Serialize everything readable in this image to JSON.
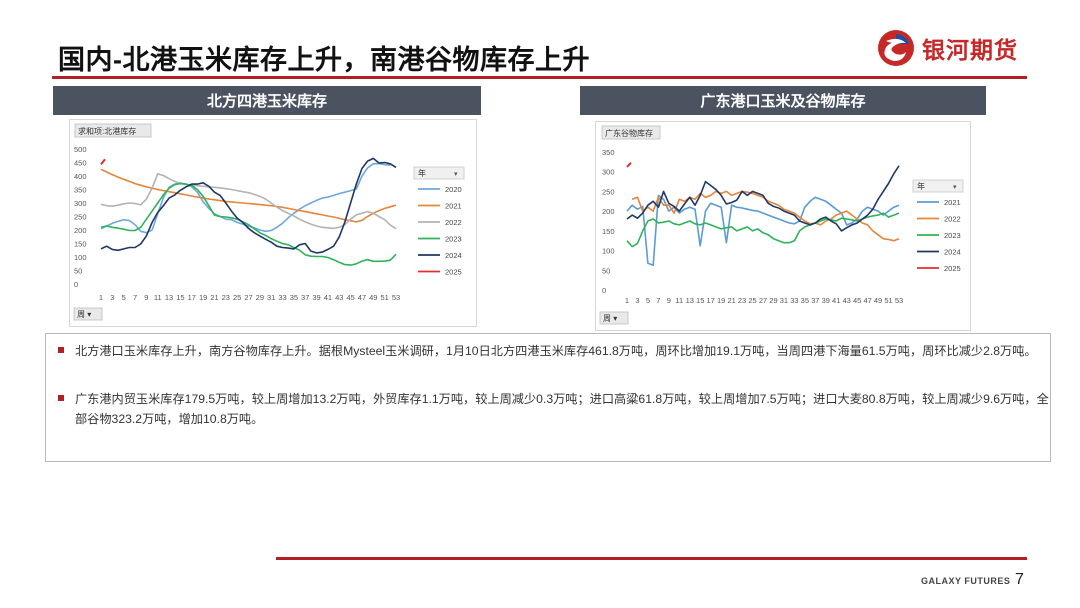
{
  "slide": {
    "title": "国内-北港玉米库存上升，南港谷物库存上升",
    "brand_name": "银河期货",
    "footer_brand": "GALAXY FUTURES",
    "page_number": "7",
    "accent_color": "#b21f24",
    "header_color": "#4b5361"
  },
  "panels": [
    {
      "header": "北方四港玉米库存"
    },
    {
      "header": "广东港口玉米及谷物库存"
    }
  ],
  "notes": [
    "北方港口玉米库存上升，南方谷物库存上升。据根Mysteel玉米调研，1月10日北方四港玉米库存461.8万吨，周环比增加19.1万吨，当周四港下海量61.5万吨，周环比减少2.8万吨。",
    "广东港内贸玉米库存179.5万吨，较上周增加13.2万吨，外贸库存1.1万吨，较上周减少0.3万吨；进口高粱61.8万吨，较上周增加7.5万吨；进口大麦80.8万吨，较上周减少9.6万吨，全部谷物323.2万吨，增加10.8万吨。"
  ],
  "chart_data": [
    {
      "type": "line",
      "field_button": "求和项:北港库存",
      "legend_title": "年",
      "axis_button": "周",
      "ylim": [
        0,
        500
      ],
      "yticks": [
        "0",
        "50",
        "100",
        "150",
        "200",
        "250",
        "300",
        "350",
        "400",
        "450",
        "500"
      ],
      "xticks": [
        "1",
        "3",
        "5",
        "7",
        "9",
        "11",
        "13",
        "15",
        "17",
        "19",
        "21",
        "23",
        "25",
        "27",
        "29",
        "31",
        "33",
        "35",
        "37",
        "39",
        "41",
        "43",
        "45",
        "47",
        "49",
        "51",
        "53"
      ],
      "legend_position": "right",
      "x": [
        1,
        2,
        3,
        4,
        5,
        6,
        7,
        8,
        9,
        10,
        11,
        12,
        13,
        14,
        15,
        16,
        17,
        18,
        19,
        20,
        21,
        22,
        23,
        24,
        25,
        26,
        27,
        28,
        29,
        30,
        31,
        32,
        33,
        34,
        35,
        36,
        37,
        38,
        39,
        40,
        41,
        42,
        43,
        44,
        45,
        46,
        47,
        48,
        49,
        50,
        51,
        52,
        53
      ],
      "series": [
        {
          "name": "2020",
          "color": "#6fa8dc",
          "values": [
            205,
            215,
            225,
            232,
            238,
            235,
            220,
            195,
            190,
            200,
            260,
            320,
            358,
            370,
            374,
            370,
            360,
            340,
            305,
            280,
            260,
            250,
            240,
            238,
            228,
            222,
            214,
            208,
            200,
            195,
            198,
            210,
            225,
            245,
            262,
            277,
            290,
            300,
            310,
            318,
            322,
            328,
            335,
            340,
            346,
            352,
            400,
            430,
            445,
            446,
            442,
            440,
            null
          ]
        },
        {
          "name": "2021",
          "color": "#e6843b",
          "values": [
            425,
            415,
            405,
            396,
            388,
            380,
            372,
            366,
            360,
            355,
            350,
            346,
            342,
            338,
            334,
            330,
            326,
            322,
            318,
            315,
            312,
            309,
            306,
            304,
            302,
            300,
            298,
            296,
            294,
            292,
            290,
            287,
            284,
            280,
            276,
            272,
            268,
            264,
            260,
            256,
            252,
            248,
            243,
            238,
            234,
            230,
            236,
            250,
            262,
            272,
            280,
            286,
            292
          ]
        },
        {
          "name": "2022",
          "color": "#b3b3b3",
          "values": [
            295,
            290,
            288,
            292,
            297,
            300,
            298,
            293,
            315,
            355,
            408,
            402,
            390,
            380,
            372,
            368,
            366,
            364,
            362,
            360,
            358,
            356,
            353,
            350,
            346,
            342,
            338,
            332,
            325,
            315,
            300,
            285,
            272,
            262,
            252,
            240,
            230,
            222,
            215,
            210,
            208,
            206,
            210,
            220,
            240,
            256,
            262,
            268,
            262,
            250,
            238,
            218,
            205
          ]
        },
        {
          "name": "2023",
          "color": "#2fb35a",
          "values": [
            210,
            215,
            210,
            207,
            203,
            198,
            198,
            210,
            240,
            270,
            300,
            330,
            355,
            368,
            372,
            370,
            365,
            350,
            325,
            290,
            255,
            250,
            248,
            245,
            240,
            230,
            220,
            205,
            190,
            180,
            168,
            158,
            150,
            145,
            135,
            125,
            108,
            103,
            102,
            102,
            98,
            90,
            80,
            72,
            70,
            75,
            85,
            90,
            84,
            84,
            85,
            88,
            110
          ]
        },
        {
          "name": "2024",
          "color": "#1f3864",
          "values": [
            130,
            140,
            128,
            125,
            130,
            135,
            135,
            148,
            178,
            228,
            265,
            290,
            318,
            330,
            347,
            360,
            370,
            370,
            375,
            362,
            340,
            328,
            300,
            270,
            244,
            228,
            206,
            190,
            178,
            166,
            155,
            140,
            135,
            133,
            130,
            145,
            150,
            122,
            115,
            118,
            128,
            140,
            175,
            230,
            300,
            370,
            428,
            455,
            465,
            448,
            450,
            445,
            432
          ]
        },
        {
          "name": "2025",
          "color": "#e03030",
          "values": [
            null,
            null,
            null,
            null,
            null,
            null,
            null,
            null,
            null,
            null,
            null,
            null,
            null,
            null,
            null,
            null,
            null,
            null,
            null,
            null,
            null,
            null,
            null,
            null,
            null,
            null,
            null,
            null,
            null,
            null,
            null,
            null,
            null,
            null,
            null,
            null,
            null,
            null,
            null,
            null,
            null,
            null,
            null,
            null,
            null,
            null,
            null,
            null,
            null,
            null,
            null,
            null,
            null
          ],
          "marker": {
            "x": 1,
            "from": 443,
            "to": 462
          }
        }
      ]
    },
    {
      "type": "line",
      "field_button": "广东谷物库存",
      "legend_title": "年",
      "axis_button": "周",
      "ylim": [
        0,
        350
      ],
      "yticks": [
        "0",
        "50",
        "100",
        "150",
        "200",
        "250",
        "300",
        "350"
      ],
      "xticks": [
        "1",
        "3",
        "5",
        "7",
        "9",
        "11",
        "13",
        "15",
        "17",
        "19",
        "21",
        "23",
        "25",
        "27",
        "29",
        "31",
        "33",
        "35",
        "37",
        "39",
        "41",
        "43",
        "45",
        "47",
        "49",
        "51",
        "53"
      ],
      "legend_position": "right",
      "x": [
        1,
        2,
        3,
        4,
        5,
        6,
        7,
        8,
        9,
        10,
        11,
        12,
        13,
        14,
        15,
        16,
        17,
        18,
        19,
        20,
        21,
        22,
        23,
        24,
        25,
        26,
        27,
        28,
        29,
        30,
        31,
        32,
        33,
        34,
        35,
        36,
        37,
        38,
        39,
        40,
        41,
        42,
        43,
        44,
        45,
        46,
        47,
        48,
        49,
        50,
        51,
        52,
        53
      ],
      "series": [
        {
          "name": "2021",
          "color": "#5b9bd5",
          "values": [
            200,
            215,
            205,
            212,
            68,
            63,
            240,
            230,
            200,
            210,
            195,
            205,
            210,
            205,
            112,
            200,
            220,
            215,
            210,
            120,
            215,
            210,
            208,
            205,
            202,
            200,
            195,
            190,
            185,
            180,
            175,
            170,
            168,
            175,
            210,
            225,
            235,
            230,
            225,
            215,
            205,
            195,
            165,
            170,
            180,
            200,
            210,
            205,
            200,
            190,
            200,
            210,
            215
          ]
        },
        {
          "name": "2022",
          "color": "#e6843b",
          "values": [
            null,
            230,
            235,
            200,
            210,
            200,
            235,
            215,
            215,
            195,
            230,
            225,
            235,
            230,
            245,
            235,
            240,
            250,
            245,
            250,
            240,
            245,
            250,
            248,
            245,
            240,
            235,
            225,
            220,
            215,
            205,
            200,
            195,
            185,
            175,
            168,
            170,
            165,
            175,
            180,
            190,
            195,
            200,
            190,
            180,
            170,
            165,
            150,
            140,
            130,
            128,
            125,
            130
          ]
        },
        {
          "name": "2023",
          "color": "#2fb35a",
          "values": [
            125,
            110,
            118,
            150,
            175,
            180,
            170,
            172,
            175,
            168,
            165,
            170,
            175,
            168,
            165,
            170,
            165,
            160,
            155,
            158,
            160,
            150,
            155,
            160,
            150,
            155,
            145,
            140,
            130,
            125,
            120,
            120,
            125,
            150,
            160,
            165,
            170,
            175,
            180,
            178,
            175,
            182,
            180,
            178,
            175,
            180,
            185,
            188,
            190,
            195,
            185,
            190,
            195
          ]
        },
        {
          "name": "2024",
          "color": "#1f3864",
          "values": [
            180,
            190,
            182,
            195,
            215,
            225,
            210,
            250,
            220,
            212,
            200,
            218,
            235,
            215,
            240,
            275,
            265,
            255,
            240,
            218,
            222,
            228,
            250,
            240,
            250,
            245,
            240,
            220,
            212,
            208,
            200,
            195,
            190,
            175,
            170,
            165,
            170,
            180,
            185,
            175,
            168,
            150,
            158,
            165,
            170,
            180,
            190,
            205,
            230,
            250,
            270,
            295,
            315
          ]
        },
        {
          "name": "2025",
          "color": "#e03030",
          "values": [
            null,
            null,
            null,
            null,
            null,
            null,
            null,
            null,
            null,
            null,
            null,
            null,
            null,
            null,
            null,
            null,
            null,
            null,
            null,
            null,
            null,
            null,
            null,
            null,
            null,
            null,
            null,
            null,
            null,
            null,
            null,
            null,
            null,
            null,
            null,
            null,
            null,
            null,
            null,
            null,
            null,
            null,
            null,
            null,
            null,
            null,
            null,
            null,
            null,
            null,
            null,
            null,
            null
          ],
          "marker": {
            "x": 1,
            "from": 312,
            "to": 323
          }
        }
      ]
    }
  ]
}
